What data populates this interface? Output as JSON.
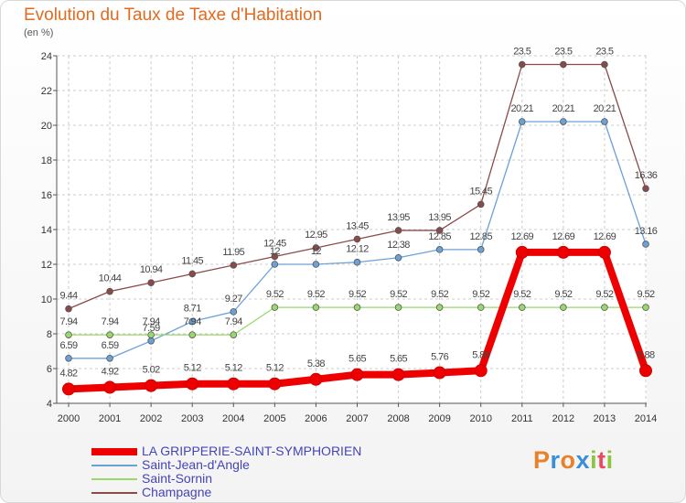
{
  "header": {
    "title": "Evolution du Taux de Taxe d'Habitation",
    "subtitle": "(en %)"
  },
  "logo": {
    "letters": [
      "P",
      "r",
      "o",
      "x",
      "i",
      "t",
      "i"
    ],
    "colors": [
      "#e8822a",
      "#3a8fd8",
      "#e8822a",
      "#3a8fd8",
      "#8cc63f",
      "#e84a5f",
      "#8cc63f"
    ]
  },
  "chart_data": {
    "type": "line",
    "x": [
      "2000",
      "2001",
      "2002",
      "2003",
      "2004",
      "2005",
      "2006",
      "2007",
      "2008",
      "2009",
      "2010",
      "2011",
      "2012",
      "2013",
      "2014"
    ],
    "ylim": [
      4,
      24
    ],
    "yticks": [
      "4",
      "6",
      "8",
      "10",
      "12",
      "14",
      "16",
      "18",
      "20",
      "22",
      "24"
    ],
    "grid": true,
    "legend_position": "bottom-left",
    "series": [
      {
        "name": "LA GRIPPERIE-SAINT-SYMPHORIEN",
        "color": "#ee0000",
        "values": [
          4.82,
          4.92,
          5.02,
          5.12,
          5.12,
          5.12,
          5.38,
          5.65,
          5.65,
          5.76,
          5.88,
          12.69,
          12.69,
          12.69,
          5.88
        ],
        "labels": [
          "4.82",
          "4.92",
          "5.02",
          "5.12",
          "5.12",
          "5.12",
          "5.38",
          "5.65",
          "5.65",
          "5.76",
          "5.88",
          "12.69",
          "12.69",
          "12.69",
          "5.88"
        ]
      },
      {
        "name": "Saint-Jean-d'Angle",
        "color": "#6aa2d8",
        "values": [
          6.59,
          6.59,
          7.59,
          8.71,
          9.27,
          12,
          12,
          12.12,
          12.38,
          12.85,
          12.85,
          20.21,
          20.21,
          20.21,
          13.16
        ],
        "labels": [
          "6.59",
          "6.59",
          "7.59",
          "8.71",
          "9.27",
          "12",
          "12",
          "12.12",
          "12.38",
          "12.85",
          "12.85",
          "20.21",
          "20.21",
          "20.21",
          "13.16"
        ]
      },
      {
        "name": "Saint-Sornin",
        "color": "#99d86a",
        "values": [
          7.94,
          7.94,
          7.94,
          7.94,
          7.94,
          9.52,
          9.52,
          9.52,
          9.52,
          9.52,
          9.52,
          9.52,
          9.52,
          9.52,
          9.52
        ],
        "labels": [
          "7.94",
          "7.94",
          "7.94",
          "7.94",
          "7.94",
          "9.52",
          "9.52",
          "9.52",
          "9.52",
          "9.52",
          "9.52",
          "9.52",
          "9.52",
          "9.52",
          "9.52"
        ]
      },
      {
        "name": "Champagne",
        "color": "#8a4a4a",
        "values": [
          9.44,
          10.44,
          10.94,
          11.45,
          11.95,
          12.45,
          12.95,
          13.45,
          13.95,
          13.95,
          15.45,
          23.5,
          23.5,
          23.5,
          16.36
        ],
        "labels": [
          "9.44",
          "10.44",
          "10.94",
          "11.45",
          "11.95",
          "12.45",
          "12.95",
          "13.45",
          "13.95",
          "13.95",
          "15.45",
          "23.5",
          "23.5",
          "23.5",
          "16.36"
        ]
      }
    ]
  }
}
